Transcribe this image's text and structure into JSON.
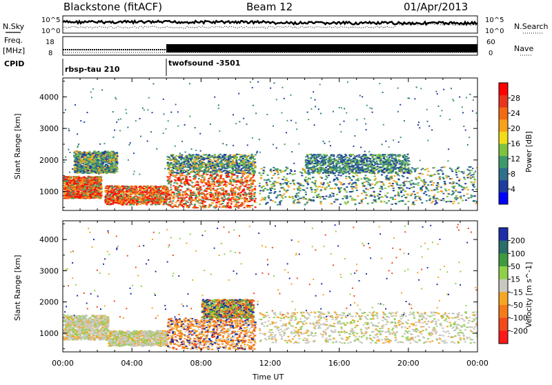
{
  "header": {
    "station": "Blackstone (fitACF)",
    "beam": "Beam 12",
    "date": "01/Apr/2013"
  },
  "panels": {
    "nsky_label": "N.Sky",
    "nsearch_label": "N.Search",
    "freq_label_line1": "Freq.",
    "freq_label_line2": "[MHz]",
    "nave_label": "Nave",
    "cpid_label": "CPID",
    "cpid_segments": [
      {
        "name": "rbsp-tau 210",
        "start_hour": 0,
        "end_hour": 6
      },
      {
        "name": "twofsound -3501",
        "start_hour": 6,
        "end_hour": 24
      }
    ],
    "noise_ticks_left": [
      "10^5",
      "10^0"
    ],
    "noise_ticks_right": [
      "10^5",
      "10^0"
    ],
    "freq_ticks": [
      "18",
      "8"
    ],
    "nave_ticks": [
      "60",
      "0"
    ]
  },
  "chart_data": [
    {
      "type": "heatmap",
      "title": "",
      "ylabel": "Slant Range [km]",
      "xlabel": "Time UT",
      "xlim_hours": [
        0,
        24
      ],
      "ylim_km": [
        400,
        4600
      ],
      "x_tick_labels": [
        "00:00",
        "04:00",
        "08:00",
        "12:00",
        "16:00",
        "20:00",
        "00:00"
      ],
      "y_ticks": [
        1000,
        2000,
        3000,
        4000
      ],
      "colorbar": {
        "label": "Power [dB]",
        "ticks": [
          4,
          8,
          12,
          16,
          20,
          24,
          28
        ],
        "colors": [
          "#0000ff",
          "#1e3c9e",
          "#2f6f8c",
          "#3e9a6a",
          "#7fc23f",
          "#f2dc1a",
          "#f7a21b",
          "#f36a14",
          "#e8341c",
          "#ff0000"
        ]
      },
      "echo_regions": [
        {
          "start_hour": 0,
          "end_hour": 2.2,
          "range_start_km": 800,
          "range_end_km": 1500,
          "level": "high"
        },
        {
          "start_hour": 0.6,
          "end_hour": 3.1,
          "range_start_km": 1600,
          "range_end_km": 2300,
          "level": "medium"
        },
        {
          "start_hour": 2.4,
          "end_hour": 6,
          "range_start_km": 600,
          "range_end_km": 1200,
          "level": "high"
        },
        {
          "start_hour": 6,
          "end_hour": 11.1,
          "range_start_km": 500,
          "range_end_km": 1600,
          "level": "high"
        },
        {
          "start_hour": 6,
          "end_hour": 11.1,
          "range_start_km": 1600,
          "range_end_km": 2200,
          "level": "medium"
        },
        {
          "start_hour": 11.3,
          "end_hour": 24,
          "range_start_km": 600,
          "range_end_km": 1800,
          "level": "medium"
        },
        {
          "start_hour": 14,
          "end_hour": 20,
          "range_start_km": 1600,
          "range_end_km": 2200,
          "level": "low"
        }
      ]
    },
    {
      "type": "heatmap",
      "title": "",
      "ylabel": "Slant Range [km]",
      "xlabel": "Time UT",
      "xlim_hours": [
        0,
        24
      ],
      "ylim_km": [
        400,
        4600
      ],
      "x_tick_labels": [
        "00:00",
        "04:00",
        "08:00",
        "12:00",
        "16:00",
        "20:00",
        "00:00"
      ],
      "y_ticks": [
        1000,
        2000,
        3000,
        4000
      ],
      "colorbar": {
        "label": "Velocity [m s^-1]",
        "ticks": [
          200,
          100,
          50,
          15,
          -15,
          -50,
          -100,
          -200
        ],
        "colors": [
          "#1c2fa6",
          "#2a6e6a",
          "#3f9a3f",
          "#8fd04a",
          "#c8c8c0",
          "#f5a623",
          "#f57a1a",
          "#f24a1a",
          "#ff1a1a"
        ]
      },
      "echo_regions": [
        {
          "start_hour": 0,
          "end_hour": 2.6,
          "range_start_km": 800,
          "range_end_km": 1600,
          "level": "ground"
        },
        {
          "start_hour": 2.6,
          "end_hour": 6,
          "range_start_km": 600,
          "range_end_km": 1100,
          "level": "ground"
        },
        {
          "start_hour": 6,
          "end_hour": 11.1,
          "range_start_km": 500,
          "range_end_km": 1500,
          "level": "negative"
        },
        {
          "start_hour": 11.3,
          "end_hour": 24,
          "range_start_km": 700,
          "range_end_km": 1700,
          "level": "ground"
        },
        {
          "start_hour": 8,
          "end_hour": 11,
          "range_start_km": 1500,
          "range_end_km": 2100,
          "level": "mixed"
        }
      ]
    }
  ]
}
